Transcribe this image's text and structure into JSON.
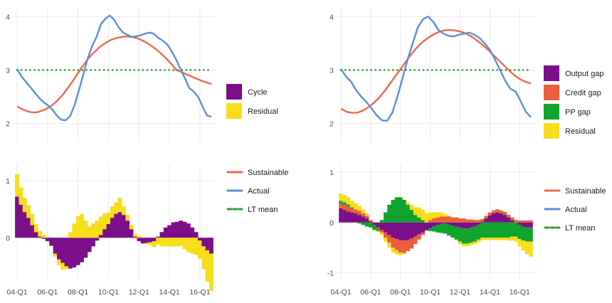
{
  "chart_data": [
    {
      "type": "area",
      "x": [
        "04-Q1",
        "04-Q2",
        "04-Q3",
        "04-Q4",
        "05-Q1",
        "05-Q2",
        "05-Q3",
        "05-Q4",
        "06-Q1",
        "06-Q2",
        "06-Q3",
        "06-Q4",
        "07-Q1",
        "07-Q2",
        "07-Q3",
        "07-Q4",
        "08-Q1",
        "08-Q2",
        "08-Q3",
        "08-Q4",
        "09-Q1",
        "09-Q2",
        "09-Q3",
        "09-Q4",
        "10-Q1",
        "10-Q2",
        "10-Q3",
        "10-Q4",
        "11-Q1",
        "11-Q2",
        "11-Q3",
        "11-Q4",
        "12-Q1",
        "12-Q2",
        "12-Q3",
        "12-Q4",
        "13-Q1",
        "13-Q2",
        "13-Q3",
        "13-Q4",
        "14-Q1",
        "14-Q2",
        "14-Q3",
        "14-Q4",
        "15-Q1",
        "15-Q2",
        "15-Q3",
        "15-Q4",
        "16-Q1",
        "16-Q2",
        "16-Q3",
        "16-Q4"
      ],
      "x_ticks": [
        "04-Q1",
        "06-Q1",
        "08-Q1",
        "10-Q1",
        "12-Q1",
        "14-Q1",
        "16-Q1"
      ],
      "top": {
        "ylim": [
          1.65,
          4.15
        ],
        "yticks": [
          2,
          3,
          4
        ],
        "series": [
          {
            "name": "Sustainable",
            "color": "#f0684b",
            "values": [
              2.32,
              2.27,
              2.23,
              2.21,
              2.21,
              2.24,
              2.28,
              2.34,
              2.42,
              2.52,
              2.64,
              2.77,
              2.91,
              3.05,
              3.18,
              3.29,
              3.38,
              3.46,
              3.52,
              3.57,
              3.6,
              3.62,
              3.63,
              3.62,
              3.6,
              3.56,
              3.51,
              3.45,
              3.38,
              3.3,
              3.21,
              3.11,
              3.0,
              2.96,
              2.92,
              2.88,
              2.84,
              2.8,
              2.77,
              2.74
            ]
          },
          {
            "name": "Actual",
            "color": "#5b8fd4",
            "values": [
              3.02,
              2.88,
              2.78,
              2.68,
              2.58,
              2.48,
              2.4,
              2.34,
              2.26,
              2.15,
              2.07,
              2.06,
              2.14,
              2.34,
              2.62,
              2.92,
              3.22,
              3.45,
              3.62,
              3.86,
              3.96,
              4.02,
              3.94,
              3.8,
              3.7,
              3.66,
              3.62,
              3.63,
              3.65,
              3.68,
              3.7,
              3.68,
              3.6,
              3.55,
              3.48,
              3.35,
              3.2,
              3.02,
              2.85,
              2.66,
              2.6,
              2.5,
              2.32,
              2.15,
              2.13
            ]
          },
          {
            "name": "LT mean",
            "color": "#2ca02c",
            "values": [
              3.0,
              3.0
            ]
          }
        ]
      },
      "bottom": {
        "ylim": [
          -0.72,
          1.3
        ],
        "yticks": [
          0,
          1
        ],
        "series": [
          {
            "name": "Cycle",
            "color": "#7b0f8a",
            "values": [
              0.72,
              0.58,
              0.45,
              0.35,
              0.22,
              0.1,
              0.02,
              -0.02,
              -0.06,
              -0.14,
              -0.28,
              -0.38,
              -0.44,
              -0.5,
              -0.54,
              -0.52,
              -0.48,
              -0.43,
              -0.35,
              -0.25,
              -0.15,
              -0.05,
              0.05,
              0.15,
              0.24,
              0.35,
              0.42,
              0.45,
              0.4,
              0.3,
              0.15,
              0.02,
              -0.06,
              -0.1,
              -0.09,
              -0.08,
              -0.06,
              0.02,
              0.1,
              0.18,
              0.22,
              0.27,
              0.28,
              0.3,
              0.28,
              0.25,
              0.18,
              0.1,
              -0.05,
              -0.15,
              -0.22,
              -0.28
            ]
          },
          {
            "name": "Residual",
            "color": "#f8dd1a",
            "values": [
              0.4,
              0.3,
              0.25,
              0.22,
              0.2,
              0.14,
              0.1,
              0.05,
              0.02,
              -0.01,
              -0.05,
              -0.1,
              -0.12,
              -0.05,
              0.1,
              0.25,
              0.38,
              0.42,
              0.3,
              0.2,
              0.25,
              0.3,
              0.32,
              0.28,
              0.2,
              0.2,
              0.2,
              0.25,
              0.15,
              0.1,
              0.08,
              0.05,
              0.03,
              0.0,
              -0.02,
              -0.05,
              -0.1,
              -0.12,
              -0.15,
              -0.15,
              -0.15,
              -0.16,
              -0.15,
              -0.14,
              -0.2,
              -0.25,
              -0.28,
              -0.3,
              -0.32,
              -0.4,
              -0.55,
              -0.65
            ]
          }
        ]
      }
    },
    {
      "type": "area",
      "x": [
        "04-Q1",
        "04-Q2",
        "04-Q3",
        "04-Q4",
        "05-Q1",
        "05-Q2",
        "05-Q3",
        "05-Q4",
        "06-Q1",
        "06-Q2",
        "06-Q3",
        "06-Q4",
        "07-Q1",
        "07-Q2",
        "07-Q3",
        "07-Q4",
        "08-Q1",
        "08-Q2",
        "08-Q3",
        "08-Q4",
        "09-Q1",
        "09-Q2",
        "09-Q3",
        "09-Q4",
        "10-Q1",
        "10-Q2",
        "10-Q3",
        "10-Q4",
        "11-Q1",
        "11-Q2",
        "11-Q3",
        "11-Q4",
        "12-Q1",
        "12-Q2",
        "12-Q3",
        "12-Q4",
        "13-Q1",
        "13-Q2",
        "13-Q3",
        "13-Q4",
        "14-Q1",
        "14-Q2",
        "14-Q3",
        "14-Q4",
        "15-Q1",
        "15-Q2",
        "15-Q3",
        "15-Q4",
        "16-Q1",
        "16-Q2",
        "16-Q3",
        "16-Q4"
      ],
      "x_ticks": [
        "04-Q1",
        "06-Q1",
        "08-Q1",
        "10-Q1",
        "12-Q1",
        "14-Q1",
        "16-Q1"
      ],
      "top": {
        "ylim": [
          1.65,
          4.15
        ],
        "yticks": [
          2,
          3,
          4
        ],
        "series": [
          {
            "name": "Sustainable",
            "color": "#f0684b",
            "values": [
              2.28,
              2.22,
              2.2,
              2.2,
              2.24,
              2.3,
              2.38,
              2.48,
              2.6,
              2.74,
              2.88,
              3.02,
              3.16,
              3.3,
              3.42,
              3.52,
              3.6,
              3.66,
              3.71,
              3.74,
              3.75,
              3.74,
              3.72,
              3.68,
              3.63,
              3.56,
              3.48,
              3.39,
              3.29,
              3.19,
              3.09,
              2.99,
              2.9,
              2.83,
              2.78,
              2.75
            ]
          },
          {
            "name": "Actual",
            "color": "#5b8fd4",
            "values": [
              3.02,
              2.88,
              2.78,
              2.62,
              2.5,
              2.4,
              2.28,
              2.15,
              2.06,
              2.05,
              2.2,
              2.5,
              2.85,
              3.2,
              3.5,
              3.8,
              3.95,
              4.0,
              3.9,
              3.75,
              3.68,
              3.64,
              3.63,
              3.66,
              3.68,
              3.7,
              3.66,
              3.6,
              3.5,
              3.38,
              3.2,
              3.0,
              2.8,
              2.65,
              2.6,
              2.42,
              2.22,
              2.12
            ]
          },
          {
            "name": "LT mean",
            "color": "#2ca02c",
            "values": [
              3.0,
              3.0
            ]
          }
        ]
      },
      "bottom": {
        "ylim": [
          -1.12,
          1.17
        ],
        "yticks": [
          -1,
          0,
          1
        ],
        "series": [
          {
            "name": "Output gap",
            "color": "#7b0f8a",
            "values": [
              0.28,
              0.25,
              0.22,
              0.2,
              0.18,
              0.15,
              0.12,
              0.08,
              0.02,
              -0.05,
              -0.1,
              -0.15,
              -0.2,
              -0.25,
              -0.3,
              -0.33,
              -0.35,
              -0.36,
              -0.35,
              -0.32,
              -0.28,
              -0.24,
              -0.2,
              -0.16,
              -0.12,
              -0.08,
              -0.05,
              -0.03,
              -0.02,
              -0.04,
              -0.06,
              -0.08,
              -0.1,
              -0.12,
              -0.12,
              -0.1,
              -0.08,
              -0.04,
              0.02,
              0.08,
              0.14,
              0.18,
              0.2,
              0.18,
              0.15,
              0.1,
              0.05,
              0.0,
              -0.05,
              -0.08,
              -0.1,
              -0.1
            ]
          },
          {
            "name": "Credit gap",
            "color": "#e8603c",
            "values": [
              0.1,
              0.1,
              0.1,
              0.08,
              0.08,
              0.08,
              0.06,
              0.05,
              0.02,
              0.0,
              -0.02,
              -0.05,
              -0.1,
              -0.15,
              -0.2,
              -0.22,
              -0.25,
              -0.25,
              -0.22,
              -0.2,
              -0.15,
              -0.1,
              -0.05,
              0.0,
              0.05,
              0.08,
              0.1,
              0.12,
              0.12,
              0.12,
              0.1,
              0.1,
              0.08,
              0.08,
              0.06,
              0.06,
              0.05,
              0.05,
              0.05,
              0.05,
              0.06,
              0.06,
              0.06,
              0.06,
              0.06,
              0.05,
              0.05,
              0.05,
              0.04,
              0.04,
              0.04,
              0.04
            ]
          },
          {
            "name": "PP gap",
            "color": "#10a32e",
            "values": [
              0.05,
              0.05,
              0.04,
              0.02,
              0.0,
              -0.02,
              -0.05,
              -0.08,
              -0.1,
              -0.1,
              -0.05,
              0.05,
              0.2,
              0.35,
              0.45,
              0.5,
              0.5,
              0.45,
              0.35,
              0.25,
              0.15,
              0.1,
              0.05,
              0.0,
              -0.05,
              -0.1,
              -0.15,
              -0.18,
              -0.2,
              -0.22,
              -0.24,
              -0.26,
              -0.28,
              -0.3,
              -0.3,
              -0.3,
              -0.3,
              -0.3,
              -0.3,
              -0.3,
              -0.3,
              -0.3,
              -0.3,
              -0.3,
              -0.3,
              -0.3,
              -0.28,
              -0.28,
              -0.28,
              -0.28,
              -0.28,
              -0.28
            ]
          },
          {
            "name": "Residual",
            "color": "#f8dd1a",
            "values": [
              0.15,
              0.14,
              0.14,
              0.13,
              0.12,
              0.1,
              0.08,
              0.05,
              0.02,
              0.0,
              -0.02,
              -0.05,
              -0.08,
              -0.1,
              -0.1,
              -0.08,
              -0.05,
              -0.02,
              0.05,
              0.1,
              0.15,
              0.2,
              0.2,
              0.18,
              0.15,
              0.12,
              0.1,
              0.08,
              0.05,
              0.02,
              0.0,
              -0.02,
              -0.05,
              -0.05,
              -0.05,
              -0.05,
              -0.05,
              -0.05,
              -0.05,
              -0.05,
              -0.05,
              -0.05,
              -0.05,
              -0.05,
              -0.05,
              -0.06,
              -0.08,
              -0.1,
              -0.15,
              -0.2,
              -0.25,
              -0.3
            ]
          }
        ]
      }
    }
  ],
  "legend_fill_left": [
    {
      "label": "Cycle",
      "color": "#7b0f8a"
    },
    {
      "label": "Residual",
      "color": "#f8dd1a"
    }
  ],
  "legend_fill_right": [
    {
      "label": "Output gap",
      "color": "#7b0f8a"
    },
    {
      "label": "Credit gap",
      "color": "#e8603c"
    },
    {
      "label": "PP gap",
      "color": "#10a32e"
    },
    {
      "label": "Residual",
      "color": "#f8dd1a"
    }
  ],
  "legend_line": [
    {
      "label": "Sustainable",
      "color": "#f0684b"
    },
    {
      "label": "Actual",
      "color": "#5b8fd4"
    },
    {
      "label": "LT mean",
      "color": "#2ca02c"
    }
  ]
}
